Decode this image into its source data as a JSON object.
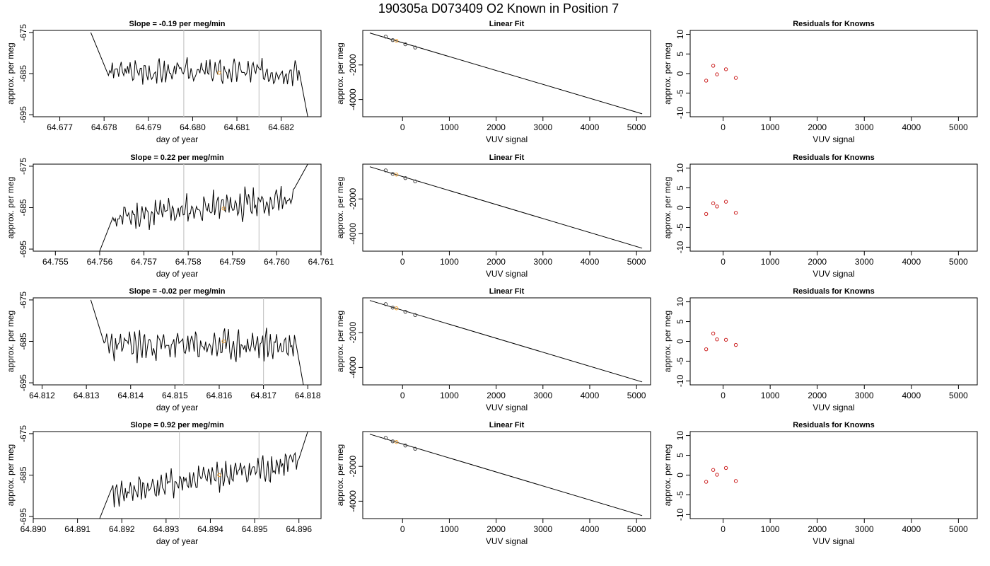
{
  "figure": {
    "title": "190305a     D073409   O2 Known in Position  7"
  },
  "chart_data": [
    {
      "type": "line",
      "row": 1,
      "title": "Slope =  -0.19  per meg/min",
      "xlabel": "day of year",
      "ylabel": "approx. per meg",
      "xlim": [
        64.6764,
        64.6829
      ],
      "ylim": [
        -695.5,
        -674.5
      ],
      "xticks": [
        64.677,
        64.678,
        64.679,
        64.68,
        64.681,
        64.682
      ],
      "xtick_labels": [
        "64.677",
        "64.678",
        "64.679",
        "64.680",
        "64.681",
        "64.682"
      ],
      "yticks": [
        -675,
        -685,
        -695
      ],
      "ytick_labels": [
        "-675",
        "-685",
        "-695"
      ],
      "vlines": [
        64.6798,
        64.6815
      ],
      "marker": {
        "x": 64.6806,
        "y": -684.8
      },
      "start": {
        "x": 64.6777,
        "y": -675
      },
      "end": {
        "x": 64.6826,
        "y": -695.5
      },
      "drop_x": 64.6781,
      "noise_from": 64.6781,
      "noise_to": 64.6824,
      "level": -684.5,
      "level_end": -684.5,
      "amp": 2.6,
      "seed": 3
    },
    {
      "type": "line",
      "row": 2,
      "title": "Slope =  0.22  per meg/min",
      "xlabel": "day of year",
      "ylabel": "approx. per meg",
      "xlim": [
        64.7545,
        64.761
      ],
      "ylim": [
        -695.5,
        -674.5
      ],
      "xticks": [
        64.755,
        64.756,
        64.757,
        64.758,
        64.759,
        64.76,
        64.761
      ],
      "xtick_labels": [
        "64.755",
        "64.756",
        "64.757",
        "64.758",
        "64.759",
        "64.760",
        "64.761"
      ],
      "yticks": [
        -675,
        -685,
        -695
      ],
      "ytick_labels": [
        "-675",
        "-685",
        "-695"
      ],
      "vlines": [
        64.7579,
        64.7596
      ],
      "marker": {
        "x": 64.7588,
        "y": -685.2
      },
      "start": {
        "x": 64.756,
        "y": -695.5
      },
      "end": {
        "x": 64.7607,
        "y": -674.5
      },
      "drop_x": 64.7563,
      "noise_from": 64.7563,
      "noise_to": 64.7604,
      "level": -687.5,
      "level_end": -683,
      "amp": 3.2,
      "seed": 11
    },
    {
      "type": "line",
      "row": 3,
      "title": "Slope =  -0.02  per meg/min",
      "xlabel": "day of year",
      "ylabel": "approx. per meg",
      "xlim": [
        64.8118,
        64.8183
      ],
      "ylim": [
        -695.5,
        -674.5
      ],
      "xticks": [
        64.812,
        64.813,
        64.814,
        64.815,
        64.816,
        64.817,
        64.818
      ],
      "xtick_labels": [
        "64.812",
        "64.813",
        "64.814",
        "64.815",
        "64.816",
        "64.817",
        "64.818"
      ],
      "yticks": [
        -675,
        -685,
        -695
      ],
      "ytick_labels": [
        "-675",
        "-685",
        "-695"
      ],
      "vlines": [
        64.8152,
        64.817
      ],
      "marker": {
        "x": 64.8161,
        "y": -685.0
      },
      "start": {
        "x": 64.8131,
        "y": -675
      },
      "end": {
        "x": 64.8179,
        "y": -695.5
      },
      "drop_x": 64.8134,
      "noise_from": 64.8134,
      "noise_to": 64.8177,
      "level": -686,
      "level_end": -686,
      "amp": 3.3,
      "seed": 23
    },
    {
      "type": "line",
      "row": 4,
      "title": "Slope =  0.92  per meg/min",
      "xlabel": "day of year",
      "ylabel": "approx. per meg",
      "xlim": [
        64.89,
        64.8965
      ],
      "ylim": [
        -695.5,
        -674.5
      ],
      "xticks": [
        64.89,
        64.891,
        64.892,
        64.893,
        64.894,
        64.895,
        64.896
      ],
      "xtick_labels": [
        "64.890",
        "64.891",
        "64.892",
        "64.893",
        "64.894",
        "64.895",
        "64.896"
      ],
      "yticks": [
        -675,
        -685,
        -695
      ],
      "ytick_labels": [
        "-675",
        "-685",
        "-695"
      ],
      "vlines": [
        64.8933,
        64.8951
      ],
      "marker": {
        "x": 64.8942,
        "y": -685.0
      },
      "start": {
        "x": 64.8915,
        "y": -695.5
      },
      "end": {
        "x": 64.8962,
        "y": -674.5
      },
      "drop_x": 64.8918,
      "noise_from": 64.8918,
      "noise_to": 64.896,
      "level": -689.5,
      "level_end": -682,
      "amp": 3.0,
      "seed": 41
    },
    {
      "type": "scatter",
      "row": 1,
      "title": "Linear Fit",
      "xlabel": "VUV signal",
      "ylabel": "approx. per meg",
      "xlim": [
        -850,
        5300
      ],
      "ylim": [
        -5000,
        0
      ],
      "xticks": [
        0,
        1000,
        2000,
        3000,
        4000,
        5000
      ],
      "xtick_labels": [
        "0",
        "1000",
        "2000",
        "3000",
        "4000",
        "5000"
      ],
      "yticks": [
        -2000,
        -4000
      ],
      "ytick_labels": [
        "-2000",
        "-4000"
      ],
      "points": [
        [
          -360,
          -360
        ],
        [
          -210,
          -560
        ],
        [
          -130,
          -600
        ],
        [
          60,
          -800
        ],
        [
          270,
          -990
        ]
      ],
      "highlight": 2,
      "fit_line": [
        [
          -700,
          -150
        ],
        [
          5120,
          -4830
        ]
      ]
    },
    {
      "type": "scatter",
      "row": 2,
      "title": "Linear Fit",
      "xlabel": "VUV signal",
      "ylabel": "approx. per meg",
      "xlim": [
        -850,
        5300
      ],
      "ylim": [
        -5000,
        0
      ],
      "xticks": [
        0,
        1000,
        2000,
        3000,
        4000,
        5000
      ],
      "xtick_labels": [
        "0",
        "1000",
        "2000",
        "3000",
        "4000",
        "5000"
      ],
      "yticks": [
        -2000,
        -4000
      ],
      "ytick_labels": [
        "-2000",
        "-4000"
      ],
      "points": [
        [
          -360,
          -360
        ],
        [
          -210,
          -560
        ],
        [
          -130,
          -600
        ],
        [
          60,
          -800
        ],
        [
          270,
          -990
        ]
      ],
      "highlight": 2,
      "fit_line": [
        [
          -700,
          -150
        ],
        [
          5120,
          -4830
        ]
      ]
    },
    {
      "type": "scatter",
      "row": 3,
      "title": "Linear Fit",
      "xlabel": "VUV signal",
      "ylabel": "approx. per meg",
      "xlim": [
        -850,
        5300
      ],
      "ylim": [
        -5000,
        0
      ],
      "xticks": [
        0,
        1000,
        2000,
        3000,
        4000,
        5000
      ],
      "xtick_labels": [
        "0",
        "1000",
        "2000",
        "3000",
        "4000",
        "5000"
      ],
      "yticks": [
        -2000,
        -4000
      ],
      "ytick_labels": [
        "-2000",
        "-4000"
      ],
      "points": [
        [
          -360,
          -360
        ],
        [
          -210,
          -560
        ],
        [
          -130,
          -600
        ],
        [
          60,
          -800
        ],
        [
          270,
          -990
        ]
      ],
      "highlight": 2,
      "fit_line": [
        [
          -700,
          -150
        ],
        [
          5120,
          -4830
        ]
      ]
    },
    {
      "type": "scatter",
      "row": 4,
      "title": "Linear Fit",
      "xlabel": "VUV signal",
      "ylabel": "approx. per meg",
      "xlim": [
        -850,
        5300
      ],
      "ylim": [
        -5000,
        0
      ],
      "xticks": [
        0,
        1000,
        2000,
        3000,
        4000,
        5000
      ],
      "xtick_labels": [
        "0",
        "1000",
        "2000",
        "3000",
        "4000",
        "5000"
      ],
      "yticks": [
        -2000,
        -4000
      ],
      "ytick_labels": [
        "-2000",
        "-4000"
      ],
      "points": [
        [
          -360,
          -360
        ],
        [
          -210,
          -560
        ],
        [
          -130,
          -600
        ],
        [
          60,
          -800
        ],
        [
          270,
          -990
        ]
      ],
      "highlight": 2,
      "fit_line": [
        [
          -700,
          -150
        ],
        [
          5120,
          -4830
        ]
      ]
    },
    {
      "type": "scatter",
      "row": 1,
      "title": "Residuals for Knowns",
      "xlabel": "VUV signal",
      "ylabel": "approx. per meg",
      "xlim": [
        -700,
        5400
      ],
      "ylim": [
        -11,
        11
      ],
      "xticks": [
        0,
        1000,
        2000,
        3000,
        4000,
        5000
      ],
      "xtick_labels": [
        "0",
        "1000",
        "2000",
        "3000",
        "4000",
        "5000"
      ],
      "yticks": [
        10,
        5,
        0,
        -5,
        -10
      ],
      "ytick_labels": [
        "10",
        "5",
        "0",
        "-5",
        "-10"
      ],
      "points": [
        [
          -360,
          -1.8
        ],
        [
          -210,
          2.0
        ],
        [
          -130,
          -0.2
        ],
        [
          60,
          1.1
        ],
        [
          270,
          -1.1
        ]
      ]
    },
    {
      "type": "scatter",
      "row": 2,
      "title": "Residuals for Knowns",
      "xlabel": "VUV signal",
      "ylabel": "approx. per meg",
      "xlim": [
        -700,
        5400
      ],
      "ylim": [
        -11,
        11
      ],
      "xticks": [
        0,
        1000,
        2000,
        3000,
        4000,
        5000
      ],
      "xtick_labels": [
        "0",
        "1000",
        "2000",
        "3000",
        "4000",
        "5000"
      ],
      "yticks": [
        10,
        5,
        0,
        -5,
        -10
      ],
      "ytick_labels": [
        "10",
        "5",
        "0",
        "-5",
        "-10"
      ],
      "points": [
        [
          -360,
          -1.6
        ],
        [
          -210,
          1.1
        ],
        [
          -130,
          0.3
        ],
        [
          60,
          1.5
        ],
        [
          270,
          -1.3
        ]
      ]
    },
    {
      "type": "scatter",
      "row": 3,
      "title": "Residuals for Knowns",
      "xlabel": "VUV signal",
      "ylabel": "approx. per meg",
      "xlim": [
        -700,
        5400
      ],
      "ylim": [
        -11,
        11
      ],
      "xticks": [
        0,
        1000,
        2000,
        3000,
        4000,
        5000
      ],
      "xtick_labels": [
        "0",
        "1000",
        "2000",
        "3000",
        "4000",
        "5000"
      ],
      "yticks": [
        10,
        5,
        0,
        -5,
        -10
      ],
      "ytick_labels": [
        "10",
        "5",
        "0",
        "-5",
        "-10"
      ],
      "points": [
        [
          -360,
          -2.0
        ],
        [
          -210,
          2.0
        ],
        [
          -130,
          0.5
        ],
        [
          60,
          0.4
        ],
        [
          270,
          -0.9
        ]
      ]
    },
    {
      "type": "scatter",
      "row": 4,
      "title": "Residuals for Knowns",
      "xlabel": "VUV signal",
      "ylabel": "approx. per meg",
      "xlim": [
        -700,
        5400
      ],
      "ylim": [
        -11,
        11
      ],
      "xticks": [
        0,
        1000,
        2000,
        3000,
        4000,
        5000
      ],
      "xtick_labels": [
        "0",
        "1000",
        "2000",
        "3000",
        "4000",
        "5000"
      ],
      "yticks": [
        10,
        5,
        0,
        -5,
        -10
      ],
      "ytick_labels": [
        "10",
        "5",
        "0",
        "-5",
        "-10"
      ],
      "points": [
        [
          -360,
          -1.7
        ],
        [
          -210,
          1.3
        ],
        [
          -130,
          0.1
        ],
        [
          60,
          1.8
        ],
        [
          270,
          -1.5
        ]
      ]
    }
  ],
  "colors": {
    "axis": "#000000",
    "trace": "#000000",
    "vline": "#c8c8c8",
    "marker_orange": "#f0a030",
    "residual_red": "#cc2222",
    "fit_point": "#444444"
  }
}
